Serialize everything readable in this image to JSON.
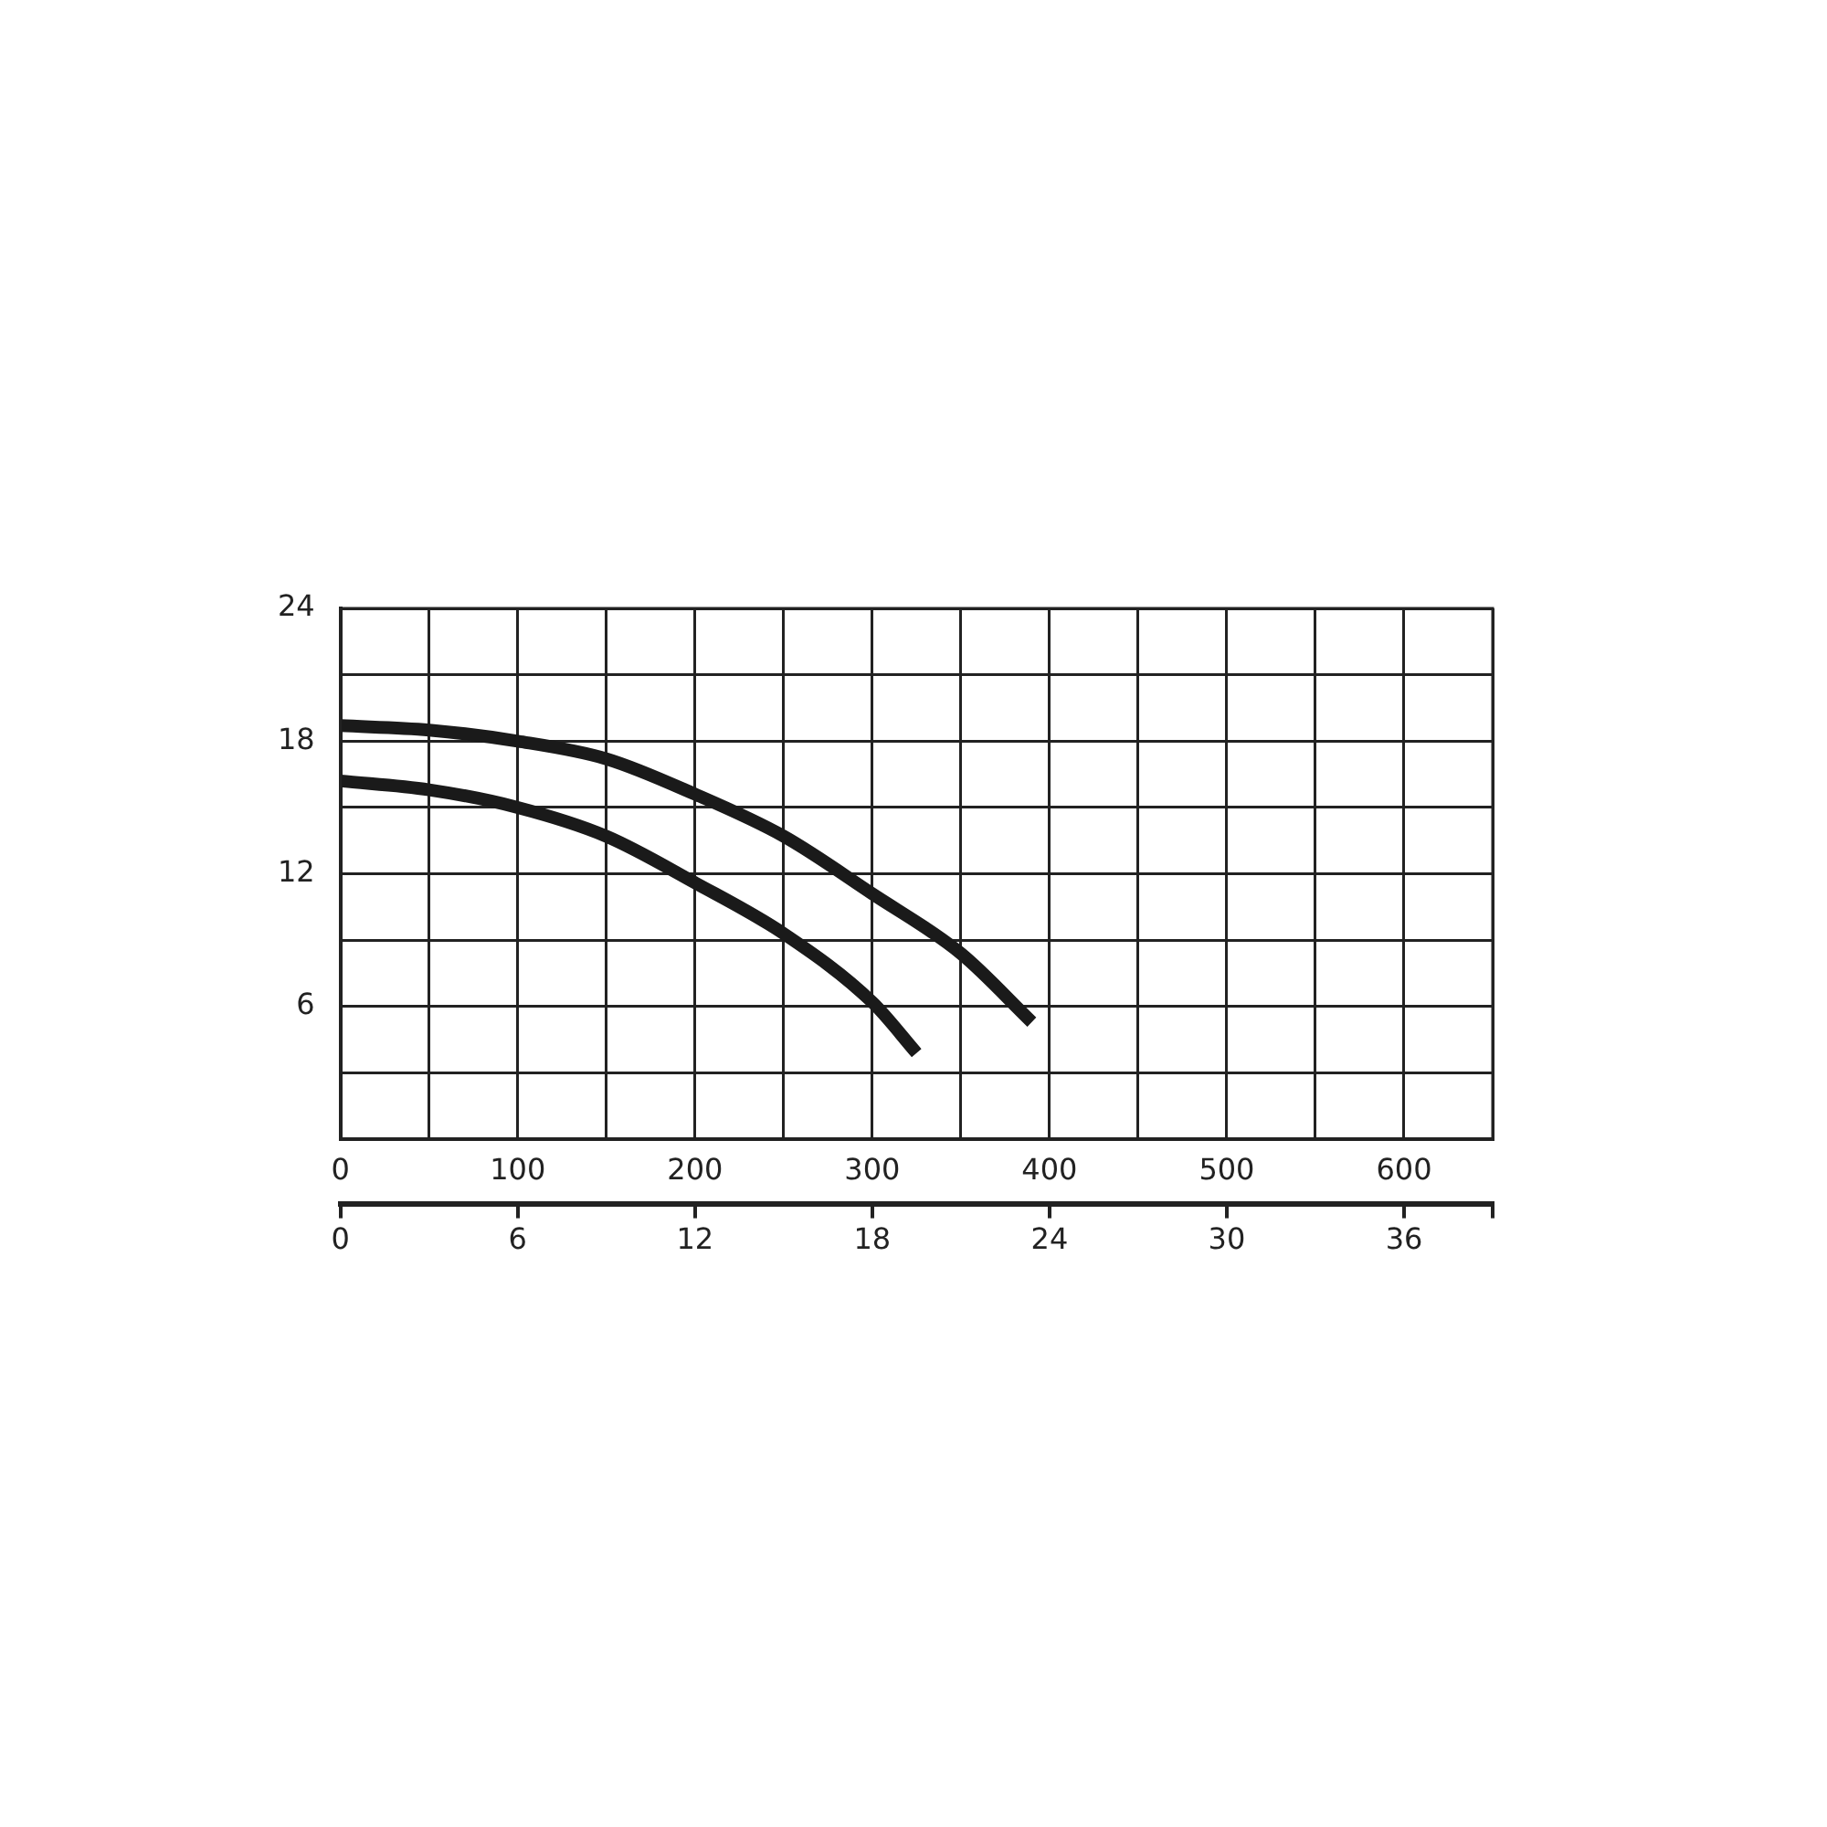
{
  "chart_data": {
    "type": "line",
    "series": [
      {
        "color": "#1a1a1a",
        "x": [
          0,
          50,
          100,
          150,
          200,
          250,
          300,
          350,
          390
        ],
        "values": [
          18.7,
          18.5,
          18.0,
          17.2,
          15.6,
          13.7,
          11.1,
          8.4,
          5.3
        ]
      },
      {
        "color": "#1a1a1a",
        "x": [
          0,
          50,
          100,
          150,
          200,
          250,
          300,
          325
        ],
        "values": [
          16.2,
          15.8,
          15.0,
          13.7,
          11.6,
          9.3,
          6.2,
          3.9
        ]
      }
    ],
    "xlim": [
      0,
      650
    ],
    "xticks": [
      0,
      {
        "value": 50,
        "label": null
      },
      100,
      {
        "value": 150,
        "label": null
      },
      200,
      {
        "value": 250,
        "label": null
      },
      300,
      {
        "value": 350,
        "label": null
      },
      400,
      {
        "value": 450,
        "label": null
      },
      500,
      {
        "value": 550,
        "label": null
      },
      600,
      {
        "value": 650,
        "label": null
      }
    ],
    "x2lim": [
      0,
      39
    ],
    "x2ticks": [
      0,
      6,
      12,
      18,
      24,
      30,
      36,
      {
        "value": 39,
        "label": null
      }
    ],
    "ylim": [
      0,
      24
    ],
    "yticks": [
      {
        "value": 0,
        "label": null
      },
      {
        "value": 3,
        "label": null
      },
      6,
      {
        "value": 9,
        "label": null
      },
      12,
      {
        "value": 15,
        "label": null
      },
      18,
      {
        "value": 21,
        "label": null
      },
      24
    ],
    "grid": true,
    "legend": false,
    "marker": "none",
    "line_style": "solid"
  }
}
